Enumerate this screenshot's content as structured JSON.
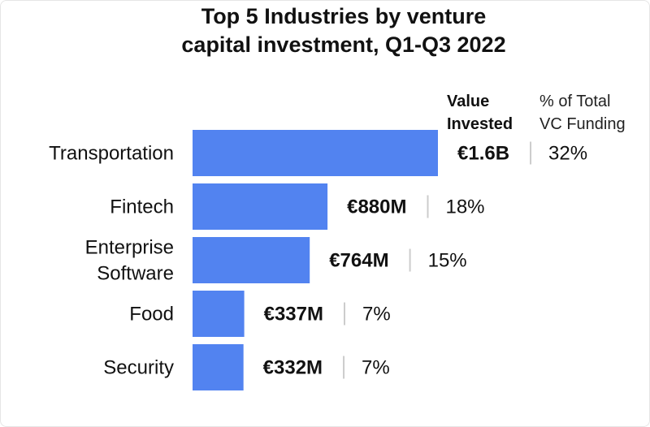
{
  "chart_data": {
    "type": "bar",
    "orientation": "horizontal",
    "title": "Top 5 Industries by venture capital investment, Q1-Q3  2022",
    "title_lines": [
      "Top 5 Industries by venture",
      "capital investment, Q1-Q3  2022"
    ],
    "column_headers": {
      "value": [
        "Value",
        "Invested"
      ],
      "percent": [
        "% of Total",
        "VC Funding"
      ]
    },
    "categories": [
      [
        "Transportation"
      ],
      [
        "Fintech"
      ],
      [
        "Enterprise",
        "Software"
      ],
      [
        "Food"
      ],
      [
        "Security"
      ]
    ],
    "values": [
      1600,
      880,
      764,
      337,
      332
    ],
    "value_unit": "€M",
    "value_labels": [
      "€1.6B",
      "€880M",
      "€764M",
      "€337M",
      "€332M"
    ],
    "percent_labels": [
      "32%",
      "18%",
      "15%",
      "7%",
      "7%"
    ],
    "grid": false,
    "legend": "none",
    "colors": {
      "bar": "#5283f0",
      "separator": "#cccccc"
    }
  }
}
